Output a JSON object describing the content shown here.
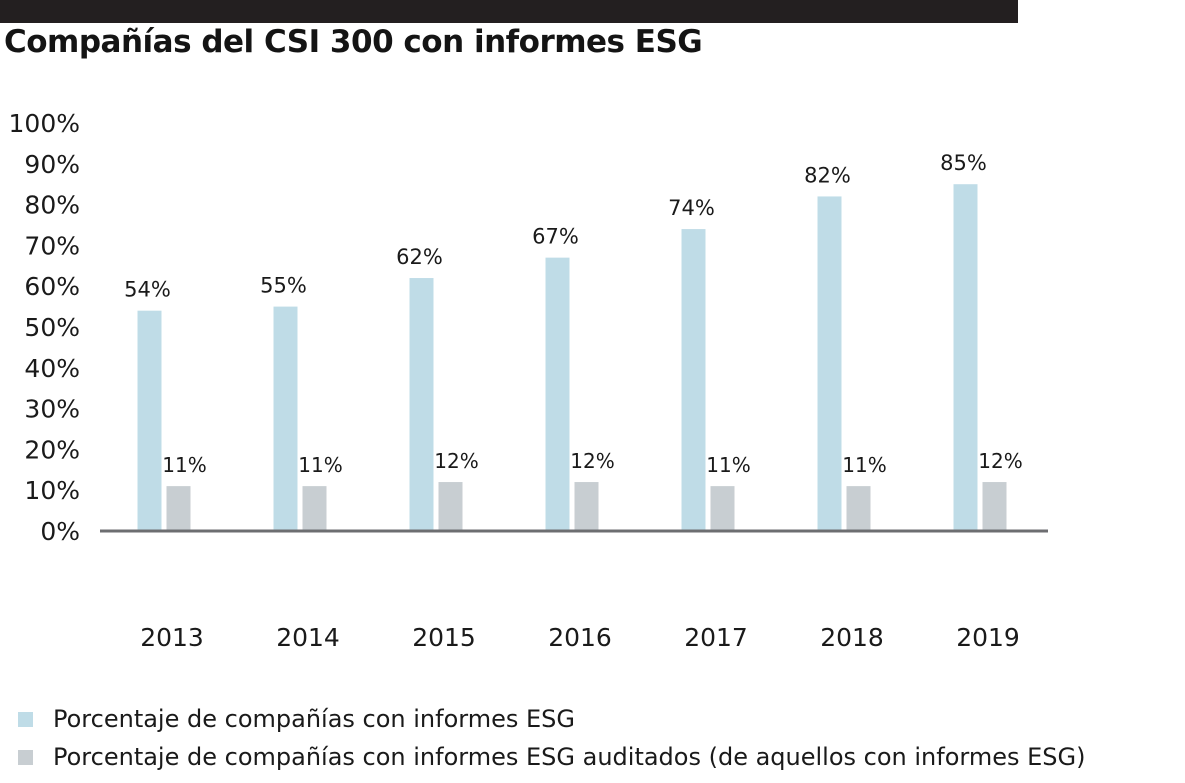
{
  "colors": {
    "top_bar": "#231f20",
    "axis": "#6d6e71",
    "text": "#1a1a1a"
  },
  "chart_data": {
    "type": "bar",
    "title": "Compañías del CSI 300 con informes ESG",
    "categories": [
      "2013",
      "2014",
      "2015",
      "2016",
      "2017",
      "2018",
      "2019"
    ],
    "series": [
      {
        "name": "Porcentaje de compañías con informes ESG",
        "color": "#bfdce7",
        "values": [
          54,
          55,
          62,
          67,
          74,
          82,
          85
        ],
        "labels": [
          "54%",
          "55%",
          "62%",
          "67%",
          "74%",
          "82%",
          "85%"
        ]
      },
      {
        "name": "Porcentaje de compañías con informes ESG auditados (de aquellos con informes ESG)",
        "color": "#c8ced2",
        "values": [
          11,
          11,
          12,
          12,
          11,
          11,
          12
        ],
        "labels": [
          "11%",
          "11%",
          "12%",
          "12%",
          "11%",
          "11%",
          "12%"
        ]
      }
    ],
    "ylim": [
      0,
      100
    ],
    "yticks": [
      "0%",
      "10%",
      "20%",
      "30%",
      "40%",
      "50%",
      "60%",
      "70%",
      "80%",
      "90%",
      "100%"
    ],
    "grid": false,
    "legend": "bottom-left"
  }
}
